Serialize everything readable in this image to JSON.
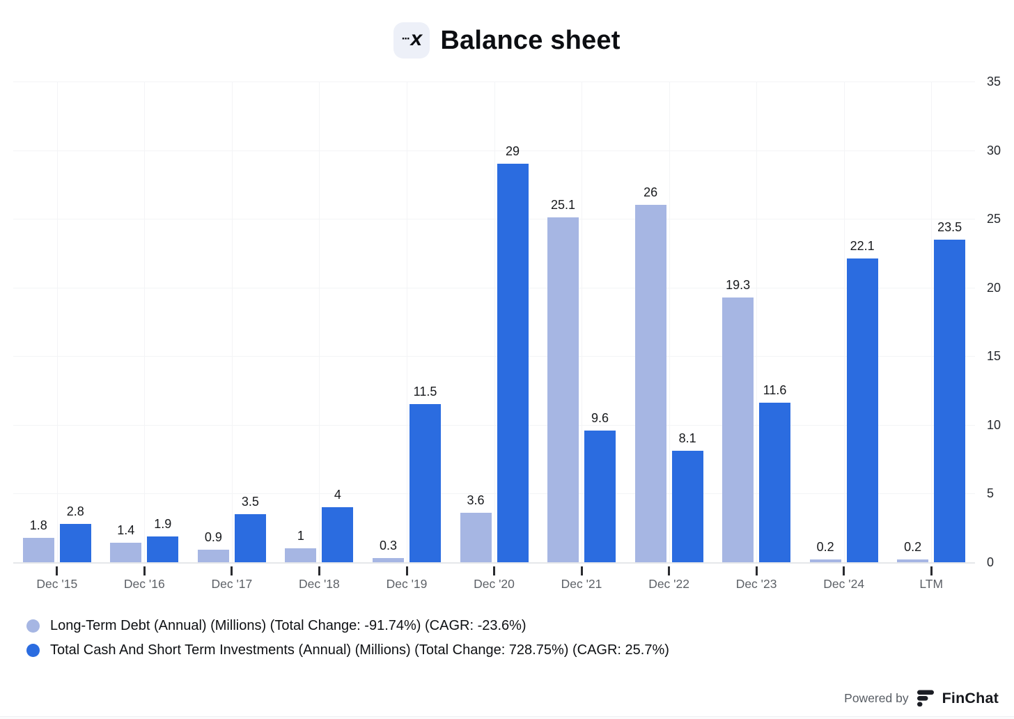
{
  "header": {
    "title": "Balance sheet",
    "icon_dots": "···",
    "icon_letter": "x"
  },
  "chart_data": {
    "type": "bar",
    "title": "Balance sheet",
    "categories": [
      "Dec '15",
      "Dec '16",
      "Dec '17",
      "Dec '18",
      "Dec '19",
      "Dec '20",
      "Dec '21",
      "Dec '22",
      "Dec '23",
      "Dec '24",
      "LTM"
    ],
    "series": [
      {
        "name": "Long-Term Debt (Annual) (Millions) (Total Change: -91.74%) (CAGR: -23.6%)",
        "key": "long-term-debt",
        "color": "#a6b6e3",
        "values": [
          1.8,
          1.4,
          0.9,
          1,
          0.3,
          3.6,
          25.1,
          26,
          19.3,
          0.2,
          0.2
        ],
        "labels": [
          "1.8",
          "1.4",
          "0.9",
          "1",
          "0.3",
          "3.6",
          "25.1",
          "26",
          "19.3",
          "0.2",
          "0.2"
        ]
      },
      {
        "name": "Total Cash And Short Term Investments (Annual) (Millions) (Total Change: 728.75%) (CAGR: 25.7%)",
        "key": "total-cash-and-short-term-investments",
        "color": "#2b6ce0",
        "values": [
          2.8,
          1.9,
          3.5,
          4,
          11.5,
          29,
          9.6,
          8.1,
          11.6,
          22.1,
          23.5
        ],
        "labels": [
          "2.8",
          "1.9",
          "3.5",
          "4",
          "11.5",
          "29",
          "9.6",
          "8.1",
          "11.6",
          "22.1",
          "23.5"
        ]
      }
    ],
    "ylim": [
      0,
      35
    ],
    "yticks": [
      0,
      5,
      10,
      15,
      20,
      25,
      30,
      35
    ],
    "y_axis_side": "right",
    "grid": true,
    "legend_position": "bottom-left"
  },
  "footer": {
    "powered_by": "Powered by",
    "brand": "FinChat"
  }
}
